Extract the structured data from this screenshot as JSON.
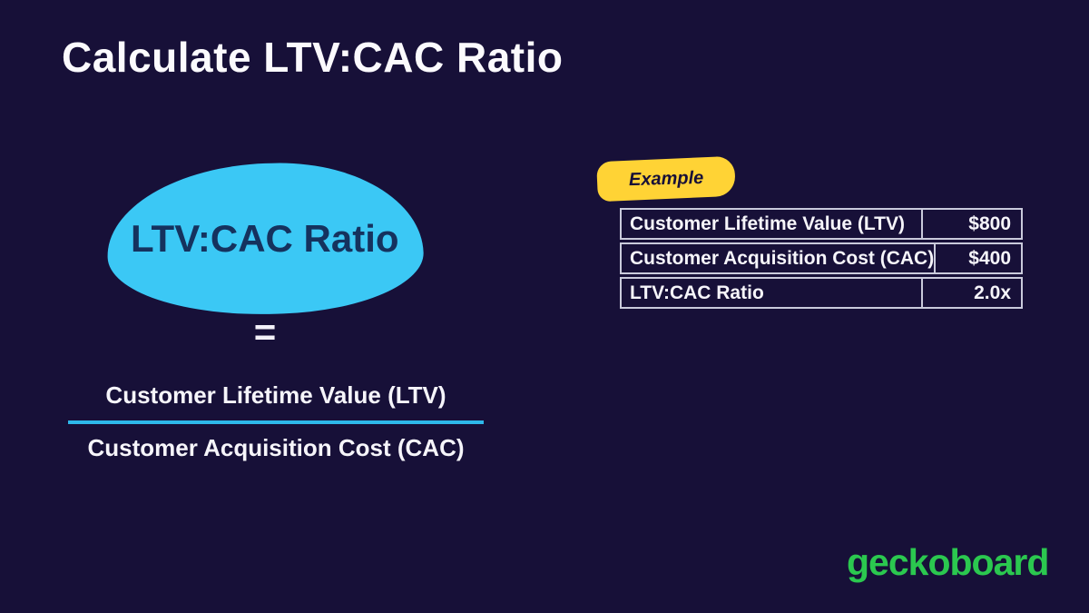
{
  "page": {
    "title": "Calculate LTV:CAC Ratio"
  },
  "formula": {
    "result_label": "LTV:CAC Ratio",
    "equals": "=",
    "numerator": "Customer Lifetime Value (LTV)",
    "denominator": "Customer Acquisition Cost (CAC)"
  },
  "example": {
    "badge_label": "Example",
    "table": {
      "rows": [
        {
          "label": "Customer Lifetime Value (LTV)",
          "value": "$800"
        },
        {
          "label": "Customer Acquisition Cost (CAC)",
          "value": "$400"
        },
        {
          "label": "LTV:CAC Ratio",
          "value": "2.0x"
        }
      ]
    }
  },
  "footer": {
    "brand": "geckoboard"
  },
  "colors": {
    "background": "#171038",
    "accent_cyan": "#3BC8F5",
    "fraction_line_cyan": "#2EB8EA",
    "badge_yellow": "#FFD335",
    "brand_green": "#2BC84F",
    "table_border": "#C9CADB",
    "blob_text_navy": "#15325E",
    "text_white": "#F6F5FA"
  }
}
